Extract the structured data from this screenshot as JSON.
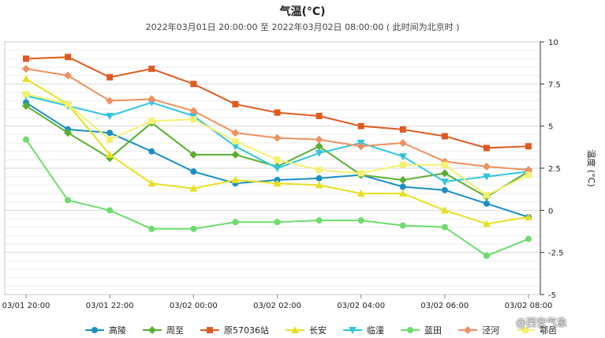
{
  "chart_data": {
    "type": "line",
    "title": "气温(°C)",
    "subtitle": "2022年03月01日 20:00:00 至 2022年03月02日 08:00:00 ( 此时间为北京时 )",
    "ylabel": "温度 (°C)",
    "ylim": [
      -5,
      10
    ],
    "yticks": [
      "10",
      "7.5",
      "5",
      "2.5",
      "0",
      "-2.5",
      "-5"
    ],
    "ytick_values": [
      10,
      7.5,
      5,
      2.5,
      0,
      -2.5,
      -5
    ],
    "x_count": 13,
    "xticks": [
      {
        "index": 0,
        "label": "03/01 20:00"
      },
      {
        "index": 2,
        "label": "03/01 22:00"
      },
      {
        "index": 4,
        "label": "03/02 00:00"
      },
      {
        "index": 6,
        "label": "03/02 02:00"
      },
      {
        "index": 8,
        "label": "03/02 04:00"
      },
      {
        "index": 10,
        "label": "03/02 06:00"
      },
      {
        "index": 12,
        "label": "03/02 08:00"
      }
    ],
    "grid": true,
    "legend_position": "bottom",
    "series": [
      {
        "name": "高陵",
        "color": "#1a8fc4",
        "marker": "circle",
        "values": [
          6.4,
          4.8,
          4.6,
          3.5,
          2.3,
          1.6,
          1.8,
          1.9,
          2.1,
          1.4,
          1.2,
          0.4,
          -0.4
        ]
      },
      {
        "name": "周至",
        "color": "#58b030",
        "marker": "diamond",
        "values": [
          6.2,
          4.6,
          3.1,
          5.2,
          3.3,
          3.3,
          2.6,
          3.8,
          2.1,
          1.8,
          2.2,
          0.8,
          2.3
        ]
      },
      {
        "name": "原57036站",
        "color": "#e05a20",
        "marker": "square",
        "values": [
          9.0,
          9.1,
          7.9,
          8.4,
          7.5,
          6.3,
          5.8,
          5.6,
          5.0,
          4.8,
          4.4,
          3.7,
          3.8
        ]
      },
      {
        "name": "长安",
        "color": "#e8e020",
        "marker": "triangle",
        "values": [
          7.8,
          6.3,
          3.3,
          1.6,
          1.3,
          1.8,
          1.6,
          1.5,
          1.0,
          1.0,
          0.0,
          -0.8,
          -0.4
        ]
      },
      {
        "name": "临潼",
        "color": "#30c6dc",
        "marker": "triangle-down",
        "values": [
          6.8,
          6.2,
          5.6,
          6.4,
          5.6,
          3.8,
          2.5,
          3.4,
          4.0,
          3.2,
          1.7,
          2.0,
          2.3
        ]
      },
      {
        "name": "蓝田",
        "color": "#6ddc6d",
        "marker": "circle",
        "values": [
          4.2,
          0.6,
          0.0,
          -1.1,
          -1.1,
          -0.7,
          -0.7,
          -0.6,
          -0.6,
          -0.9,
          -1.0,
          -2.7,
          -1.7
        ]
      },
      {
        "name": "泾河",
        "color": "#f09060",
        "marker": "diamond",
        "values": [
          8.4,
          8.0,
          6.5,
          6.6,
          5.9,
          4.6,
          4.3,
          4.2,
          3.8,
          4.0,
          2.9,
          2.6,
          2.4
        ]
      },
      {
        "name": "鄠邑",
        "color": "#f6f070",
        "marker": "square",
        "values": [
          6.9,
          6.3,
          4.2,
          5.3,
          5.4,
          4.1,
          3.0,
          2.4,
          2.2,
          2.7,
          2.7,
          0.9,
          2.1
        ]
      }
    ]
  },
  "watermark": "@西安气象"
}
